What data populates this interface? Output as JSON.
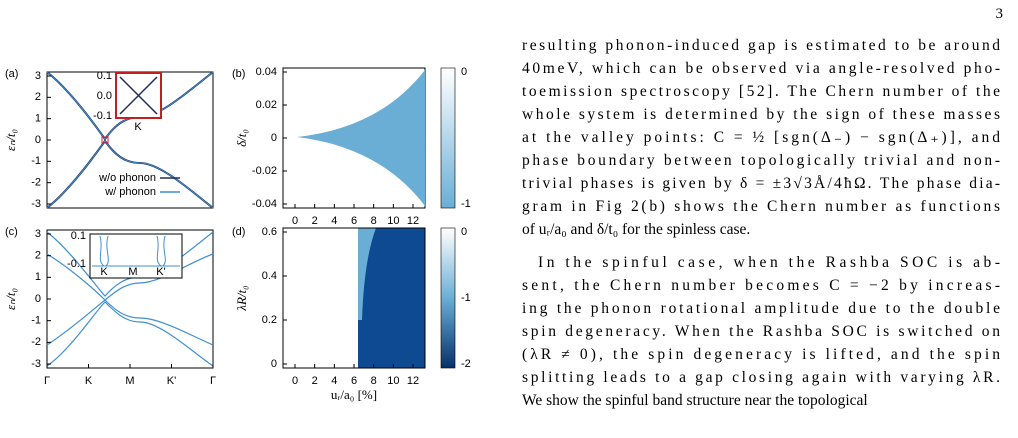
{
  "page_number": "3",
  "figure": {
    "panels": [
      {
        "label": "(a)",
        "ylabel": "εₙ/t₀",
        "yticks": [
          "3",
          "2",
          "1",
          "0",
          "-1",
          "-2",
          "-3"
        ],
        "inset_yticks": [
          "0.1",
          "0.0",
          "-0.1"
        ],
        "inset_label": "K",
        "legend": [
          "w/o phonon",
          "w/ phonon"
        ]
      },
      {
        "label": "(b)",
        "ylabel": "δ/t₀",
        "yticks": [
          "0.04",
          "0.02",
          "0",
          "-0.02",
          "-0.04"
        ],
        "xticks": [
          "0",
          "2",
          "4",
          "6",
          "8",
          "10",
          "12"
        ],
        "colorbar_ticks": [
          "0",
          "-1"
        ]
      },
      {
        "label": "(c)",
        "ylabel": "εₙ/t₀",
        "yticks": [
          "3",
          "2",
          "1",
          "0",
          "-1",
          "-2",
          "-3"
        ],
        "xticks": [
          "Γ",
          "K",
          "M",
          "K'",
          "Γ"
        ],
        "inset_yticks": [
          "0.1",
          "-0.1"
        ],
        "inset_xticks": [
          "K",
          "M",
          "K'"
        ]
      },
      {
        "label": "(d)",
        "ylabel": "λR/t₀",
        "yticks": [
          "0.6",
          "0.4",
          "0.2",
          "0"
        ],
        "xticks": [
          "0",
          "2",
          "4",
          "6",
          "8",
          "10",
          "12"
        ],
        "xlabel": "uᵣ/a₀ [%]",
        "colorbar_ticks": [
          "0",
          "-1",
          "-2"
        ]
      }
    ]
  },
  "body": {
    "paragraphs": [
      [
        "resulting phonon-induced gap is estimated to be around",
        "40meV, which can be observed via angle-resolved pho-",
        "toemission spectroscopy [52]. The Chern number of the",
        "whole system is determined by the sign of these masses",
        "at the valley points: C = ½ [sgn(Δ₋) − sgn(Δ₊)], and",
        "phase boundary between topologically trivial and non-",
        "trivial phases is given by δ = ±3√3Å/4ħΩ. The phase dia-",
        "gram in Fig 2(b) shows the Chern number as functions",
        "of uᵣ/a₀ and δ/t₀ for the spinless case."
      ],
      [
        "In the spinful case, when the Rashba SOC is ab-",
        "sent, the Chern number becomes C = −2 by increas-",
        "ing the phonon rotational amplitude due to the double",
        "spin degeneracy. When the Rashba SOC is switched on",
        "(λR ≠ 0), the spin degeneracy is lifted, and the spin",
        "splitting leads to a gap closing again with varying λR.",
        "We show the spinful band structure near the topological"
      ]
    ]
  }
}
